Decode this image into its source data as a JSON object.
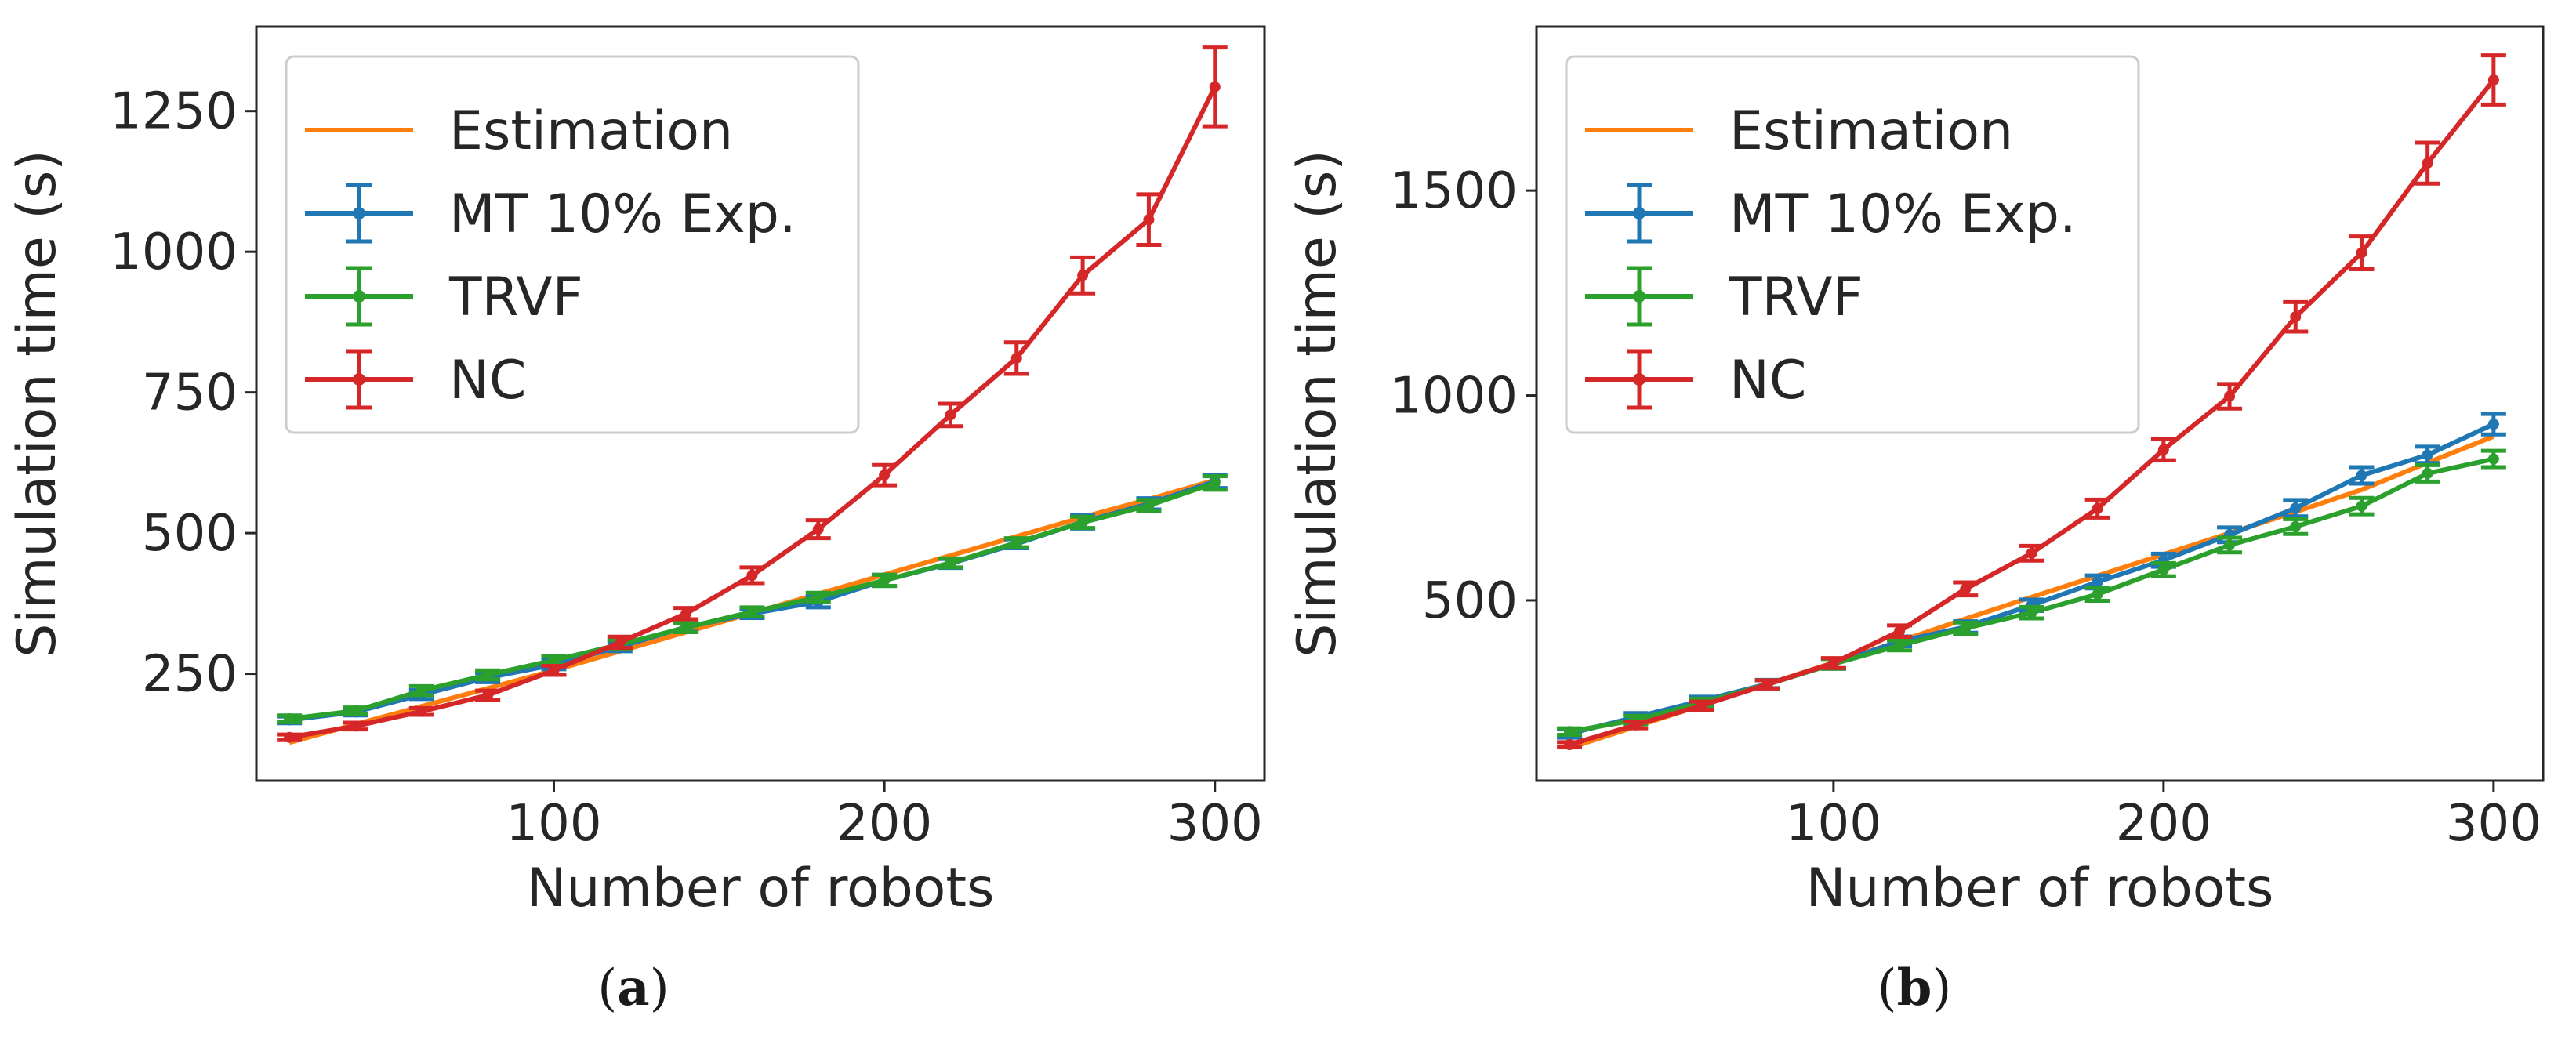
{
  "chart_data": [
    {
      "type": "line",
      "caption": "(a)",
      "caption_letter": "a",
      "xlabel": "Number of robots",
      "ylabel": "Simulation time (s)",
      "xlim": [
        10,
        315
      ],
      "ylim": [
        60,
        1400
      ],
      "xticks": [
        100,
        200,
        300
      ],
      "yticks": [
        250,
        500,
        750,
        1000,
        1250
      ],
      "legend_position": "upper-left",
      "x": [
        20,
        40,
        60,
        80,
        100,
        120,
        140,
        160,
        180,
        200,
        220,
        240,
        260,
        280,
        300
      ],
      "series": [
        {
          "name": "Estimation",
          "color": "#ff7f0e",
          "marker": false,
          "values": [
            128,
            160,
            192,
            224,
            256,
            290,
            324,
            358,
            392,
            426,
            460,
            494,
            528,
            560,
            594
          ],
          "errors": null
        },
        {
          "name": "MT 10% Exp.",
          "color": "#1f77b4",
          "marker": true,
          "values": [
            168,
            182,
            213,
            243,
            266,
            298,
            333,
            357,
            378,
            416,
            446,
            481,
            520,
            552,
            592
          ],
          "errors": [
            6,
            6,
            8,
            8,
            8,
            8,
            8,
            8,
            10,
            10,
            8,
            8,
            12,
            10,
            12
          ]
        },
        {
          "name": "TRVF",
          "color": "#2ca02c",
          "marker": true,
          "values": [
            170,
            184,
            220,
            248,
            274,
            302,
            332,
            360,
            386,
            416,
            447,
            483,
            519,
            549,
            589
          ],
          "errors": [
            6,
            6,
            8,
            8,
            8,
            8,
            8,
            8,
            8,
            10,
            8,
            8,
            10,
            10,
            12
          ]
        },
        {
          "name": "NC",
          "color": "#d62728",
          "marker": true,
          "values": [
            137,
            157,
            183,
            212,
            256,
            306,
            357,
            425,
            507,
            603,
            710,
            811,
            958,
            1057,
            1293
          ],
          "errors": [
            5,
            6,
            6,
            8,
            8,
            10,
            10,
            14,
            16,
            18,
            20,
            28,
            32,
            45,
            70
          ]
        }
      ]
    },
    {
      "type": "line",
      "caption": "(b)",
      "caption_letter": "b",
      "xlabel": "Number of robots",
      "ylabel": "Simulation time (s)",
      "xlim": [
        10,
        315
      ],
      "ylim": [
        60,
        1900
      ],
      "xticks": [
        100,
        200,
        300
      ],
      "yticks": [
        500,
        1000,
        1500
      ],
      "legend_position": "upper-left",
      "x": [
        20,
        40,
        60,
        80,
        100,
        120,
        140,
        160,
        180,
        200,
        220,
        240,
        260,
        280,
        300
      ],
      "series": [
        {
          "name": "Estimation",
          "color": "#ff7f0e",
          "marker": false,
          "values": [
            140,
            192,
            244,
            296,
            348,
            400,
            455,
            508,
            560,
            612,
            664,
            716,
            770,
            836,
            900
          ],
          "errors": null
        },
        {
          "name": "MT 10% Exp.",
          "color": "#1f77b4",
          "marker": true,
          "values": [
            175,
            215,
            255,
            296,
            345,
            400,
            435,
            488,
            545,
            598,
            660,
            725,
            805,
            855,
            930
          ],
          "errors": [
            10,
            10,
            10,
            10,
            12,
            12,
            14,
            14,
            16,
            16,
            18,
            20,
            20,
            20,
            25
          ]
        },
        {
          "name": "TRVF",
          "color": "#2ca02c",
          "marker": true,
          "values": [
            180,
            208,
            250,
            295,
            345,
            390,
            432,
            470,
            515,
            575,
            635,
            680,
            730,
            810,
            845
          ],
          "errors": [
            8,
            10,
            10,
            10,
            12,
            12,
            14,
            14,
            16,
            16,
            18,
            18,
            20,
            20,
            20
          ]
        },
        {
          "name": "NC",
          "color": "#d62728",
          "marker": true,
          "values": [
            148,
            196,
            243,
            295,
            347,
            425,
            528,
            615,
            724,
            868,
            998,
            1192,
            1348,
            1567,
            1770
          ],
          "errors": [
            6,
            8,
            10,
            10,
            12,
            14,
            16,
            18,
            22,
            26,
            30,
            36,
            40,
            50,
            60
          ]
        }
      ]
    }
  ]
}
